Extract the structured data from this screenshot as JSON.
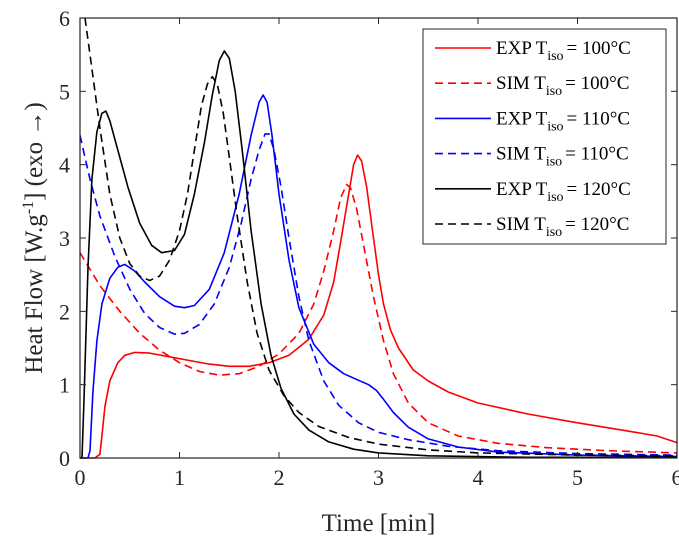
{
  "chart_data": {
    "type": "line",
    "xlabel": "Time [min]",
    "ylabel_parts": {
      "main": "Heat Flow [W.g",
      "sup": "-1",
      "tail": "] (exo →)"
    },
    "xlim": [
      0,
      6
    ],
    "ylim": [
      0,
      6
    ],
    "x_ticks": [
      0,
      1,
      2,
      3,
      4,
      5,
      6
    ],
    "y_ticks": [
      0,
      1,
      2,
      3,
      4,
      5,
      6
    ],
    "grid": false,
    "legend_position": "top-right",
    "series": [
      {
        "legend": {
          "prefix": "EXP T",
          "sub": "iso",
          "suffix": "= 100°C"
        },
        "color": "#ff0000",
        "dash": "solid",
        "points": [
          [
            0,
            0
          ],
          [
            0.15,
            0
          ],
          [
            0.2,
            0.05
          ],
          [
            0.22,
            0.3
          ],
          [
            0.25,
            0.7
          ],
          [
            0.3,
            1.05
          ],
          [
            0.38,
            1.3
          ],
          [
            0.45,
            1.4
          ],
          [
            0.55,
            1.44
          ],
          [
            0.7,
            1.43
          ],
          [
            0.9,
            1.38
          ],
          [
            1.1,
            1.33
          ],
          [
            1.3,
            1.28
          ],
          [
            1.5,
            1.25
          ],
          [
            1.7,
            1.25
          ],
          [
            1.9,
            1.3
          ],
          [
            2.1,
            1.4
          ],
          [
            2.3,
            1.62
          ],
          [
            2.45,
            1.95
          ],
          [
            2.55,
            2.4
          ],
          [
            2.62,
            2.95
          ],
          [
            2.7,
            3.6
          ],
          [
            2.75,
            4.0
          ],
          [
            2.79,
            4.13
          ],
          [
            2.83,
            4.05
          ],
          [
            2.88,
            3.7
          ],
          [
            2.94,
            3.1
          ],
          [
            3.0,
            2.5
          ],
          [
            3.05,
            2.1
          ],
          [
            3.12,
            1.75
          ],
          [
            3.2,
            1.5
          ],
          [
            3.35,
            1.2
          ],
          [
            3.5,
            1.05
          ],
          [
            3.7,
            0.9
          ],
          [
            4.0,
            0.75
          ],
          [
            4.5,
            0.6
          ],
          [
            5.0,
            0.48
          ],
          [
            5.5,
            0.37
          ],
          [
            5.8,
            0.3
          ],
          [
            6.0,
            0.21
          ]
        ]
      },
      {
        "legend": {
          "prefix": "SIM T",
          "sub": "iso",
          "suffix": "= 100°C"
        },
        "color": "#ff0000",
        "dash": "dashed",
        "points": [
          [
            0,
            2.8
          ],
          [
            0.2,
            2.35
          ],
          [
            0.4,
            2.0
          ],
          [
            0.6,
            1.7
          ],
          [
            0.8,
            1.47
          ],
          [
            1.0,
            1.3
          ],
          [
            1.2,
            1.18
          ],
          [
            1.4,
            1.13
          ],
          [
            1.6,
            1.15
          ],
          [
            1.8,
            1.25
          ],
          [
            2.0,
            1.42
          ],
          [
            2.2,
            1.7
          ],
          [
            2.35,
            2.1
          ],
          [
            2.45,
            2.55
          ],
          [
            2.55,
            3.1
          ],
          [
            2.62,
            3.55
          ],
          [
            2.68,
            3.73
          ],
          [
            2.72,
            3.68
          ],
          [
            2.78,
            3.4
          ],
          [
            2.85,
            2.9
          ],
          [
            2.95,
            2.2
          ],
          [
            3.05,
            1.6
          ],
          [
            3.15,
            1.15
          ],
          [
            3.3,
            0.75
          ],
          [
            3.5,
            0.48
          ],
          [
            3.8,
            0.3
          ],
          [
            4.2,
            0.2
          ],
          [
            4.7,
            0.14
          ],
          [
            5.3,
            0.1
          ],
          [
            6.0,
            0.07
          ]
        ]
      },
      {
        "legend": {
          "prefix": "EXP T",
          "sub": "iso",
          "suffix": "= 110°C"
        },
        "color": "#0000ff",
        "dash": "solid",
        "points": [
          [
            0,
            0
          ],
          [
            0.08,
            0
          ],
          [
            0.1,
            0.1
          ],
          [
            0.13,
            0.9
          ],
          [
            0.17,
            1.6
          ],
          [
            0.22,
            2.1
          ],
          [
            0.3,
            2.45
          ],
          [
            0.38,
            2.6
          ],
          [
            0.45,
            2.64
          ],
          [
            0.55,
            2.55
          ],
          [
            0.65,
            2.4
          ],
          [
            0.8,
            2.2
          ],
          [
            0.95,
            2.07
          ],
          [
            1.05,
            2.05
          ],
          [
            1.15,
            2.08
          ],
          [
            1.3,
            2.3
          ],
          [
            1.45,
            2.8
          ],
          [
            1.6,
            3.6
          ],
          [
            1.72,
            4.4
          ],
          [
            1.8,
            4.85
          ],
          [
            1.84,
            4.95
          ],
          [
            1.88,
            4.85
          ],
          [
            1.93,
            4.4
          ],
          [
            2.0,
            3.6
          ],
          [
            2.1,
            2.7
          ],
          [
            2.2,
            2.05
          ],
          [
            2.35,
            1.55
          ],
          [
            2.5,
            1.3
          ],
          [
            2.65,
            1.15
          ],
          [
            2.8,
            1.06
          ],
          [
            2.9,
            1.0
          ],
          [
            2.98,
            0.92
          ],
          [
            3.05,
            0.8
          ],
          [
            3.15,
            0.62
          ],
          [
            3.3,
            0.42
          ],
          [
            3.5,
            0.26
          ],
          [
            3.8,
            0.15
          ],
          [
            4.2,
            0.08
          ],
          [
            5.0,
            0.04
          ],
          [
            6.0,
            0.02
          ]
        ]
      },
      {
        "legend": {
          "prefix": "SIM T",
          "sub": "iso",
          "suffix": "= 110°C"
        },
        "color": "#0000ff",
        "dash": "dashed",
        "points": [
          [
            0,
            4.4
          ],
          [
            0.1,
            3.8
          ],
          [
            0.2,
            3.3
          ],
          [
            0.35,
            2.75
          ],
          [
            0.5,
            2.3
          ],
          [
            0.65,
            1.97
          ],
          [
            0.8,
            1.78
          ],
          [
            0.95,
            1.69
          ],
          [
            1.05,
            1.7
          ],
          [
            1.2,
            1.82
          ],
          [
            1.35,
            2.1
          ],
          [
            1.5,
            2.6
          ],
          [
            1.62,
            3.2
          ],
          [
            1.72,
            3.8
          ],
          [
            1.8,
            4.2
          ],
          [
            1.86,
            4.42
          ],
          [
            1.9,
            4.42
          ],
          [
            1.95,
            4.2
          ],
          [
            2.02,
            3.7
          ],
          [
            2.1,
            3.0
          ],
          [
            2.2,
            2.2
          ],
          [
            2.3,
            1.6
          ],
          [
            2.45,
            1.05
          ],
          [
            2.6,
            0.72
          ],
          [
            2.8,
            0.48
          ],
          [
            3.0,
            0.35
          ],
          [
            3.3,
            0.25
          ],
          [
            3.7,
            0.16
          ],
          [
            4.2,
            0.1
          ],
          [
            5.0,
            0.06
          ],
          [
            6.0,
            0.04
          ]
        ]
      },
      {
        "legend": {
          "prefix": "EXP T",
          "sub": "iso",
          "suffix": "= 120°C"
        },
        "color": "#000000",
        "dash": "solid",
        "points": [
          [
            0,
            0
          ],
          [
            0.02,
            0
          ],
          [
            0.04,
            0.8
          ],
          [
            0.08,
            2.6
          ],
          [
            0.12,
            3.8
          ],
          [
            0.17,
            4.45
          ],
          [
            0.22,
            4.7
          ],
          [
            0.26,
            4.73
          ],
          [
            0.3,
            4.6
          ],
          [
            0.38,
            4.2
          ],
          [
            0.48,
            3.7
          ],
          [
            0.6,
            3.2
          ],
          [
            0.72,
            2.9
          ],
          [
            0.82,
            2.8
          ],
          [
            0.95,
            2.83
          ],
          [
            1.05,
            3.05
          ],
          [
            1.15,
            3.6
          ],
          [
            1.25,
            4.3
          ],
          [
            1.33,
            4.95
          ],
          [
            1.4,
            5.42
          ],
          [
            1.45,
            5.55
          ],
          [
            1.5,
            5.45
          ],
          [
            1.56,
            5.0
          ],
          [
            1.63,
            4.2
          ],
          [
            1.72,
            3.1
          ],
          [
            1.82,
            2.1
          ],
          [
            1.92,
            1.4
          ],
          [
            2.02,
            0.95
          ],
          [
            2.15,
            0.6
          ],
          [
            2.3,
            0.38
          ],
          [
            2.5,
            0.22
          ],
          [
            2.75,
            0.12
          ],
          [
            3.0,
            0.07
          ],
          [
            3.5,
            0.03
          ],
          [
            4.5,
            0.01
          ],
          [
            6.0,
            0.01
          ]
        ]
      },
      {
        "legend": {
          "prefix": "SIM T",
          "sub": "iso",
          "suffix": "= 120°C"
        },
        "color": "#000000",
        "dash": "dashed",
        "points": [
          [
            0.05,
            6.0
          ],
          [
            0.1,
            5.5
          ],
          [
            0.2,
            4.5
          ],
          [
            0.3,
            3.6
          ],
          [
            0.4,
            3.0
          ],
          [
            0.5,
            2.65
          ],
          [
            0.6,
            2.48
          ],
          [
            0.7,
            2.42
          ],
          [
            0.8,
            2.48
          ],
          [
            0.9,
            2.7
          ],
          [
            1.0,
            3.1
          ],
          [
            1.08,
            3.6
          ],
          [
            1.15,
            4.2
          ],
          [
            1.22,
            4.8
          ],
          [
            1.28,
            5.1
          ],
          [
            1.33,
            5.2
          ],
          [
            1.38,
            5.1
          ],
          [
            1.44,
            4.7
          ],
          [
            1.5,
            4.1
          ],
          [
            1.58,
            3.3
          ],
          [
            1.68,
            2.4
          ],
          [
            1.78,
            1.7
          ],
          [
            1.9,
            1.2
          ],
          [
            2.05,
            0.85
          ],
          [
            2.2,
            0.62
          ],
          [
            2.4,
            0.43
          ],
          [
            2.7,
            0.28
          ],
          [
            3.0,
            0.19
          ],
          [
            3.5,
            0.11
          ],
          [
            4.0,
            0.07
          ],
          [
            5.0,
            0.04
          ],
          [
            6.0,
            0.03
          ]
        ]
      }
    ]
  }
}
